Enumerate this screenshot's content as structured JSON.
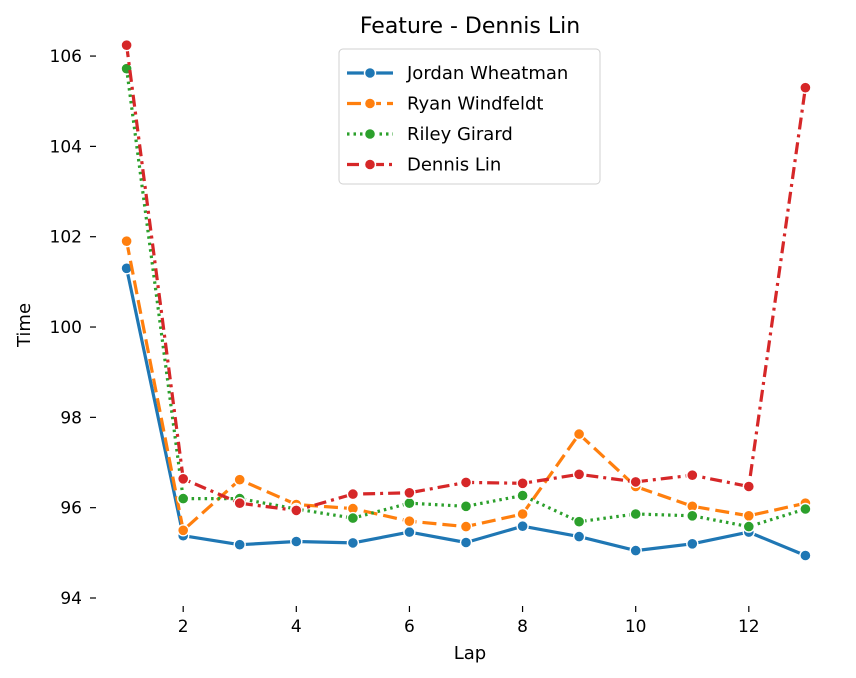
{
  "chart_data": {
    "type": "line",
    "title": "Feature - Dennis Lin",
    "xlabel": "Lap",
    "ylabel": "Time",
    "xlim": [
      0.6,
      13.4
    ],
    "ylim": [
      94,
      106.4
    ],
    "xticks": [
      2,
      4,
      6,
      8,
      10,
      12
    ],
    "yticks": [
      94,
      96,
      98,
      100,
      102,
      104,
      106
    ],
    "grid": false,
    "legend_position": "top-center",
    "x": [
      1,
      2,
      3,
      4,
      5,
      6,
      7,
      8,
      9,
      10,
      11,
      12,
      13
    ],
    "series": [
      {
        "name": "Jordan Wheatman",
        "color": "#1f77b4",
        "dash": "solid",
        "values": [
          101.3,
          95.38,
          95.18,
          95.25,
          95.22,
          95.46,
          95.23,
          95.59,
          95.36,
          95.05,
          95.2,
          95.46,
          94.94
        ]
      },
      {
        "name": "Ryan Windfeldt",
        "color": "#ff7f0e",
        "dash": "dashed",
        "values": [
          101.9,
          95.5,
          96.62,
          96.07,
          95.98,
          95.7,
          95.58,
          95.86,
          97.63,
          96.47,
          96.03,
          95.82,
          96.1
        ]
      },
      {
        "name": "Riley Girard",
        "color": "#2ca02c",
        "dash": "dotted",
        "values": [
          105.72,
          96.2,
          96.2,
          95.97,
          95.77,
          96.1,
          96.03,
          96.27,
          95.69,
          95.86,
          95.82,
          95.58,
          95.97
        ]
      },
      {
        "name": "Dennis Lin",
        "color": "#d62728",
        "dash": "dashdot",
        "values": [
          106.24,
          96.64,
          96.1,
          95.94,
          96.3,
          96.33,
          96.56,
          96.54,
          96.74,
          96.57,
          96.72,
          96.47,
          105.3
        ]
      }
    ]
  }
}
